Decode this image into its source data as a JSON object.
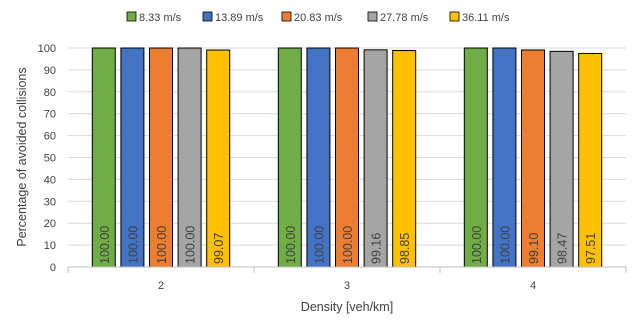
{
  "chart_data": {
    "type": "bar",
    "title": "",
    "xlabel": "Density [veh/km]",
    "ylabel": "Percentage of avoided collisions",
    "categories": [
      "2",
      "3",
      "4"
    ],
    "ylim": [
      0,
      100
    ],
    "yticks": [
      0,
      10,
      20,
      30,
      40,
      50,
      60,
      70,
      80,
      90,
      100
    ],
    "grid": "horizontal",
    "legend_position": "top",
    "series": [
      {
        "name": "8.33 m/s",
        "color": "#70AD47",
        "values": [
          100.0,
          100.0,
          100.0
        ],
        "labels": [
          "100.00",
          "100.00",
          "100.00"
        ]
      },
      {
        "name": "13.89 m/s",
        "color": "#4472C4",
        "values": [
          100.0,
          100.0,
          100.0
        ],
        "labels": [
          "100.00",
          "100.00",
          "100.00"
        ]
      },
      {
        "name": "20.83 m/s",
        "color": "#ED7D31",
        "values": [
          100.0,
          100.0,
          99.1
        ],
        "labels": [
          "100.00",
          "100.00",
          "99.10"
        ]
      },
      {
        "name": "27.78 m/s",
        "color": "#A5A5A5",
        "values": [
          100.0,
          99.16,
          98.47
        ],
        "labels": [
          "100.00",
          "99.16",
          "98.47"
        ]
      },
      {
        "name": "36.11 m/s",
        "color": "#FFC000",
        "values": [
          99.07,
          98.85,
          97.51
        ],
        "labels": [
          "99.07",
          "98.85",
          "97.51"
        ]
      }
    ]
  }
}
